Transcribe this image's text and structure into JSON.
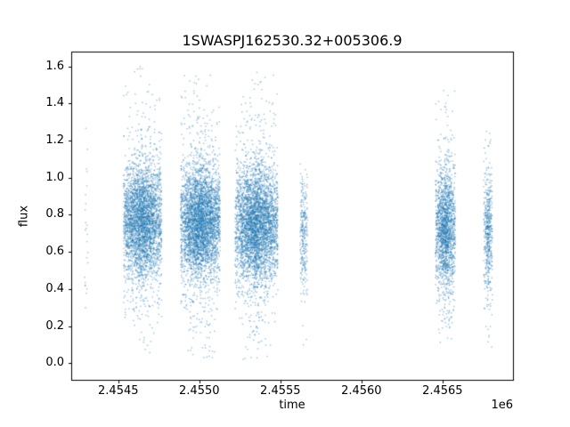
{
  "chart_data": {
    "type": "scatter",
    "title": "1SWASPJ162530.32+005306.9",
    "xlabel": "time",
    "ylabel": "flux",
    "x_offset_label": "1e6",
    "xlim": [
      2454210,
      2456935
    ],
    "ylim": [
      -0.09,
      1.68
    ],
    "grid": false,
    "legend": null,
    "marker_color": "#1f77b4",
    "marker_alpha": 0.45,
    "marker_size": 1.4,
    "xticks": [
      {
        "value": 2454500,
        "label": "2.4545"
      },
      {
        "value": 2455000,
        "label": "2.4550"
      },
      {
        "value": 2455500,
        "label": "2.4555"
      },
      {
        "value": 2456000,
        "label": "2.4560"
      },
      {
        "value": 2456500,
        "label": "2.4565"
      }
    ],
    "yticks": [
      {
        "value": 0.0,
        "label": "0.0"
      },
      {
        "value": 0.2,
        "label": "0.2"
      },
      {
        "value": 0.4,
        "label": "0.4"
      },
      {
        "value": 0.6,
        "label": "0.6"
      },
      {
        "value": 0.8,
        "label": "0.8"
      },
      {
        "value": 1.0,
        "label": "1.0"
      },
      {
        "value": 1.2,
        "label": "1.2"
      },
      {
        "value": 1.4,
        "label": "1.4"
      },
      {
        "value": 1.6,
        "label": "1.6"
      }
    ],
    "clusters": [
      {
        "t_center": 2454303,
        "t_halfwidth": 10,
        "n": 24,
        "flux_mean": 0.76,
        "flux_std": 0.27,
        "flux_min": 0.18,
        "flux_max": 1.32
      },
      {
        "t_center": 2454650,
        "t_halfwidth": 118,
        "n": 3500,
        "flux_mean": 0.77,
        "flux_std": 0.15,
        "flux_min": 0.05,
        "flux_max": 1.61
      },
      {
        "t_center": 2455007,
        "t_halfwidth": 122,
        "n": 4000,
        "flux_mean": 0.76,
        "flux_std": 0.15,
        "flux_min": 0.03,
        "flux_max": 1.57
      },
      {
        "t_center": 2455353,
        "t_halfwidth": 132,
        "n": 4000,
        "flux_mean": 0.74,
        "flux_std": 0.16,
        "flux_min": 0.02,
        "flux_max": 1.6
      },
      {
        "t_center": 2455644,
        "t_halfwidth": 24,
        "n": 280,
        "flux_mean": 0.7,
        "flux_std": 0.17,
        "flux_min": 0.07,
        "flux_max": 1.08
      },
      {
        "t_center": 2456518,
        "t_halfwidth": 62,
        "n": 1800,
        "flux_mean": 0.72,
        "flux_std": 0.16,
        "flux_min": 0.08,
        "flux_max": 1.6
      },
      {
        "t_center": 2456781,
        "t_halfwidth": 27,
        "n": 500,
        "flux_mean": 0.7,
        "flux_std": 0.16,
        "flux_min": 0.05,
        "flux_max": 1.45
      }
    ]
  }
}
